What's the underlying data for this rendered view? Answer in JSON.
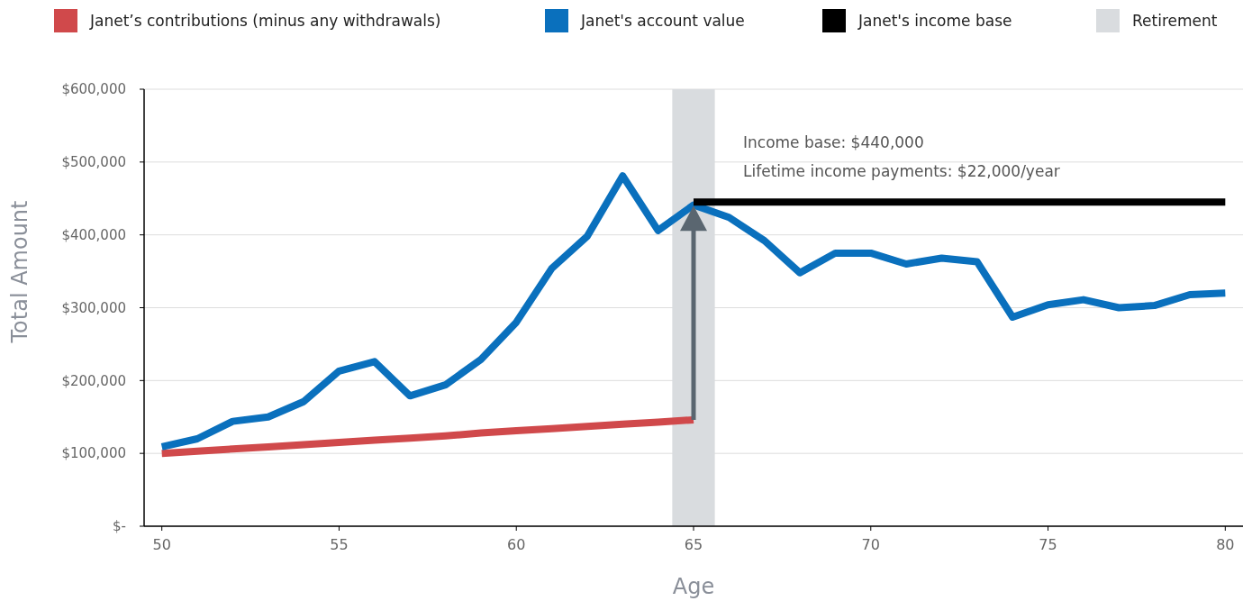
{
  "chart_data": {
    "type": "line",
    "xlabel": "Age",
    "ylabel": "Total Amount",
    "xlim": [
      49.5,
      80.5
    ],
    "xticks": [
      50,
      55,
      60,
      65,
      70,
      75,
      80
    ],
    "ylim": [
      0,
      600000
    ],
    "yticks": [
      {
        "value": 0,
        "label": "$-"
      },
      {
        "value": 100000,
        "label": "$100,000"
      },
      {
        "value": 200000,
        "label": "$200,000"
      },
      {
        "value": 300000,
        "label": "$300,000"
      },
      {
        "value": 400000,
        "label": "$400,000"
      },
      {
        "value": 500000,
        "label": "$500,000"
      },
      {
        "value": 600000,
        "label": "$600,000"
      }
    ],
    "grid": "y",
    "legend": "top",
    "line_style": "solid",
    "series": [
      {
        "name": "Janet’s contributions (minus any withdrawals)",
        "color": "#d0494b",
        "x": [
          50,
          51,
          52,
          53,
          54,
          55,
          56,
          57,
          58,
          59,
          60,
          61,
          62,
          63,
          64,
          65
        ],
        "values": [
          100000,
          103000,
          106000,
          109000,
          112000,
          115000,
          118000,
          121000,
          124000,
          128000,
          131000,
          134000,
          137000,
          140000,
          143000,
          146000
        ]
      },
      {
        "name": "Janet's account value",
        "color": "#0a70bd",
        "x": [
          50,
          51,
          52,
          53,
          54,
          55,
          56,
          57,
          58,
          59,
          60,
          61,
          62,
          63,
          64,
          65,
          66,
          67,
          68,
          69,
          70,
          71,
          72,
          73,
          74,
          75,
          76,
          77,
          78,
          79,
          80
        ],
        "values": [
          109000,
          120000,
          144000,
          150000,
          171000,
          213000,
          226000,
          179000,
          194000,
          229000,
          280000,
          354000,
          398000,
          481000,
          406000,
          441000,
          424000,
          392000,
          348000,
          375000,
          375000,
          360000,
          368000,
          363000,
          287000,
          304000,
          311000,
          300000,
          303000,
          318000,
          320000
        ]
      },
      {
        "name": "Janet's income base",
        "color": "#000000",
        "x": [
          65,
          80
        ],
        "values": [
          445000,
          445000
        ]
      }
    ],
    "bands": [
      {
        "axis": "x",
        "from": 64.4,
        "to": 65.6,
        "label": "Retirement",
        "color": "#d9dcdf"
      }
    ],
    "annotations": [
      "Income base: $440,000",
      "Lifetime income payments: $22,000/year"
    ]
  }
}
